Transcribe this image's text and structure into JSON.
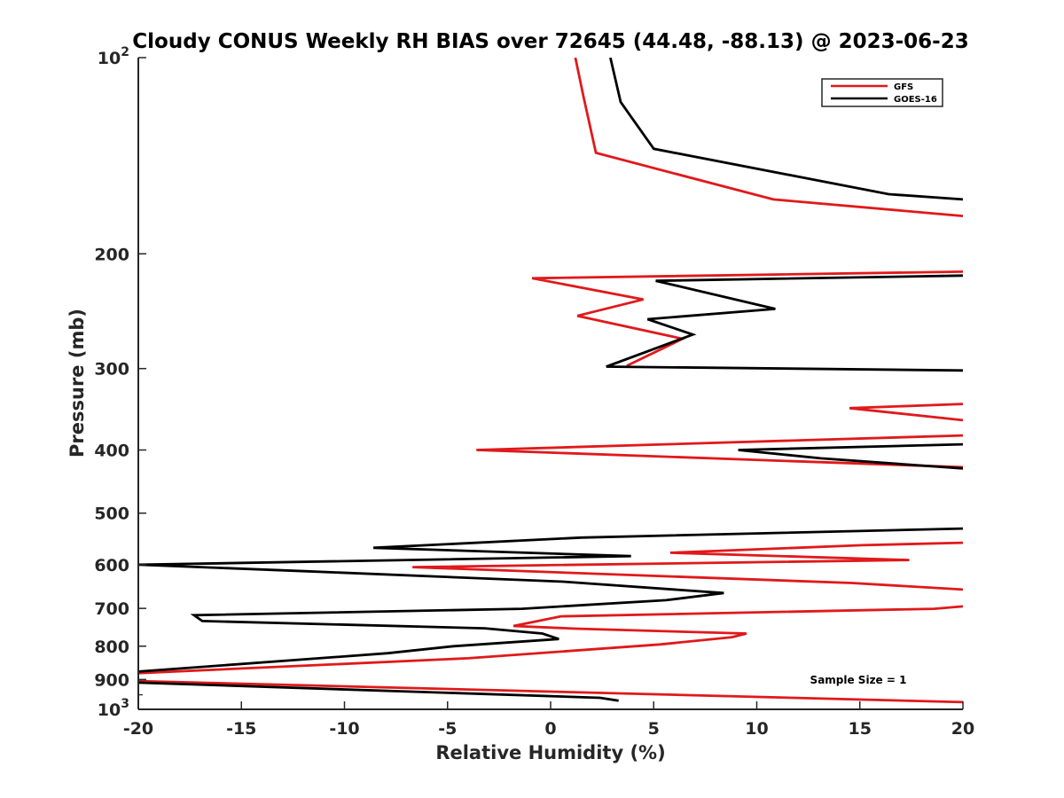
{
  "chart_data": {
    "type": "line",
    "title": "Cloudy CONUS Weekly RH BIAS over 72645 (44.48, -88.13) @ 2023-06-23",
    "xlabel": "Relative Humidity (%)",
    "ylabel": "Pressure (mb)",
    "xlim": [
      -20,
      20
    ],
    "ylim": [
      100,
      1000
    ],
    "y_scale": "log",
    "y_reversed": true,
    "x_ticks": [
      "-20",
      "-15",
      "-10",
      "-5",
      "0",
      "5",
      "10",
      "15",
      "20"
    ],
    "y_ticks": [
      {
        "value": 100,
        "base": "10",
        "exp": "2"
      },
      {
        "value": 200,
        "base": "200",
        "exp": ""
      },
      {
        "value": 300,
        "base": "300",
        "exp": ""
      },
      {
        "value": 400,
        "base": "400",
        "exp": ""
      },
      {
        "value": 500,
        "base": "500",
        "exp": ""
      },
      {
        "value": 600,
        "base": "600",
        "exp": ""
      },
      {
        "value": 700,
        "base": "700",
        "exp": ""
      },
      {
        "value": 800,
        "base": "800",
        "exp": ""
      },
      {
        "value": 900,
        "base": "900",
        "exp": ""
      },
      {
        "value": 1000,
        "base": "10",
        "exp": "3"
      }
    ],
    "grid": false,
    "legend_position": "top-right",
    "annotation": "Sample Size = 1",
    "series": [
      {
        "name": "GFS",
        "color": "#e0191b",
        "points": [
          [
            1.2,
            100
          ],
          [
            1.6,
            115
          ],
          [
            2.2,
            140
          ],
          [
            10.8,
            165
          ],
          [
            20,
            175
          ],
          [
            null,
            null
          ],
          [
            20,
            213
          ],
          [
            -0.9,
            218
          ],
          [
            4.5,
            235
          ],
          [
            1.3,
            249
          ],
          [
            6.4,
            270
          ],
          [
            3.7,
            297
          ],
          [
            null,
            null
          ],
          [
            20,
            340
          ],
          [
            14.5,
            345
          ],
          [
            20,
            360
          ],
          [
            null,
            null
          ],
          [
            20,
            380
          ],
          [
            -3.6,
            400
          ],
          [
            20,
            425
          ],
          [
            null,
            null
          ],
          [
            20,
            555
          ],
          [
            15.1,
            560
          ],
          [
            5.8,
            575
          ],
          [
            17.4,
            590
          ],
          [
            -6.7,
            605
          ],
          [
            14.6,
            640
          ],
          [
            20,
            655
          ],
          [
            null,
            null
          ],
          [
            20,
            695
          ],
          [
            18.6,
            701
          ],
          [
            0.5,
            720
          ],
          [
            -1.8,
            745
          ],
          [
            1.2,
            752
          ],
          [
            9.5,
            765
          ],
          [
            8.8,
            775
          ],
          [
            5.3,
            795
          ],
          [
            -4,
            835
          ],
          [
            -20,
            880
          ],
          [
            null,
            null
          ],
          [
            -20,
            905
          ],
          [
            20,
            975
          ]
        ]
      },
      {
        "name": "GOES-16",
        "color": "#000000",
        "points": [
          [
            2.9,
            100
          ],
          [
            3.4,
            117
          ],
          [
            5.0,
            138
          ],
          [
            16.4,
            162
          ],
          [
            20,
            165
          ],
          [
            null,
            null
          ],
          [
            20,
            216
          ],
          [
            5.1,
            220
          ],
          [
            10.9,
            243
          ],
          [
            4.7,
            252
          ],
          [
            6.9,
            266
          ],
          [
            2.7,
            298
          ],
          [
            20,
            302
          ],
          [
            null,
            null
          ],
          [
            20,
            392
          ],
          [
            9.1,
            400
          ],
          [
            13.1,
            412
          ],
          [
            20,
            427
          ],
          [
            null,
            null
          ],
          [
            20,
            528
          ],
          [
            1.5,
            545
          ],
          [
            -8.6,
            565
          ],
          [
            3.9,
            582
          ],
          [
            -20,
            600
          ],
          [
            -11.8,
            614
          ],
          [
            0.6,
            637
          ],
          [
            8.4,
            663
          ],
          [
            5.6,
            680
          ],
          [
            -1.4,
            701
          ],
          [
            -17.3,
            717
          ],
          [
            -16.9,
            732
          ],
          [
            -3.2,
            751
          ],
          [
            -0.4,
            765
          ],
          [
            0.4,
            780
          ],
          [
            -4.7,
            800
          ],
          [
            -7.9,
            820
          ],
          [
            -20,
            875
          ],
          [
            null,
            null
          ],
          [
            -20,
            910
          ],
          [
            2.4,
            960
          ],
          [
            3.3,
            970
          ]
        ]
      }
    ]
  }
}
